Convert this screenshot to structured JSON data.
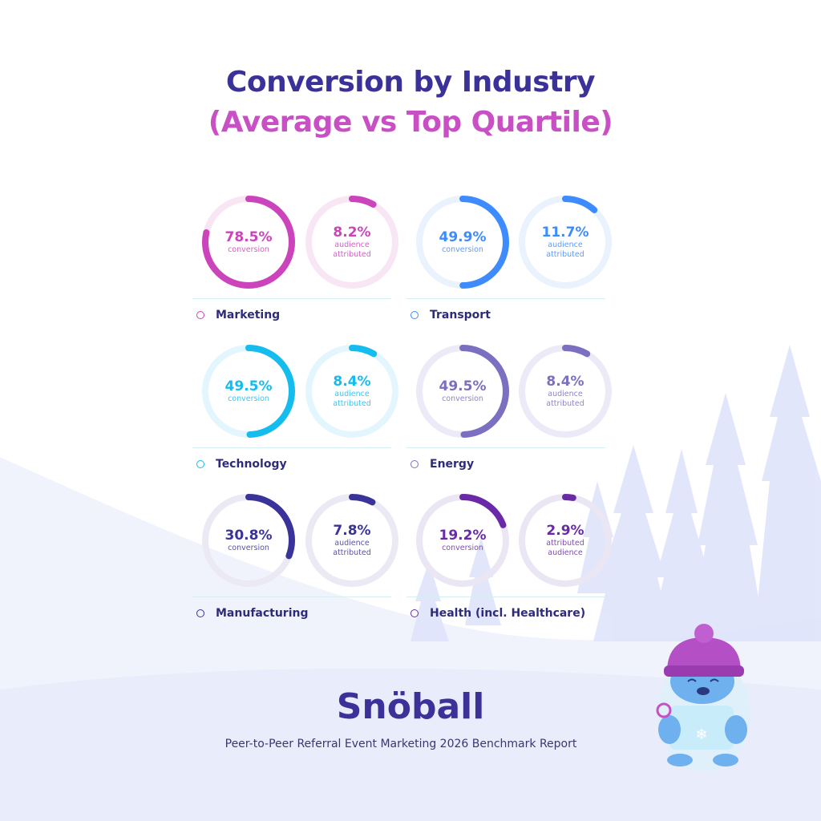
{
  "title": "Conversion by Industry",
  "subtitle": "(Average vs Top Quartile)",
  "brand": "Snöball",
  "report": "Peer-to-Peer Referral Event Marketing 2026 Benchmark Report",
  "chart_data": {
    "type": "pie",
    "variant": "donut-progress",
    "industries": [
      {
        "name": "Marketing",
        "color": "#cc44bb",
        "track": "#f8e6f4",
        "conversion": {
          "value": 78.5,
          "label": "78.5%",
          "caption": [
            "conversion"
          ]
        },
        "audience": {
          "value": 8.2,
          "label": "8.2%",
          "caption": [
            "audience",
            "attributed"
          ]
        }
      },
      {
        "name": "Transport",
        "color": "#3d8bfd",
        "track": "#eaf2fe",
        "conversion": {
          "value": 49.9,
          "label": "49.9%",
          "caption": [
            "conversion"
          ]
        },
        "audience": {
          "value": 11.7,
          "label": "11.7%",
          "caption": [
            "audience",
            "attributed"
          ]
        }
      },
      {
        "name": "Technology",
        "color": "#14bdee",
        "track": "#e3f6fd",
        "conversion": {
          "value": 49.5,
          "label": "49.5%",
          "caption": [
            "conversion"
          ]
        },
        "audience": {
          "value": 8.4,
          "label": "8.4%",
          "caption": [
            "audience",
            "attributed"
          ]
        }
      },
      {
        "name": "Energy",
        "color": "#7a6fc0",
        "track": "#eceaf6",
        "conversion": {
          "value": 49.5,
          "label": "49.5%",
          "caption": [
            "conversion"
          ]
        },
        "audience": {
          "value": 8.4,
          "label": "8.4%",
          "caption": [
            "audience",
            "attributed"
          ]
        }
      },
      {
        "name": "Manufacturing",
        "color": "#3a3399",
        "track": "#ebeaf4",
        "conversion": {
          "value": 30.8,
          "label": "30.8%",
          "caption": [
            "conversion"
          ]
        },
        "audience": {
          "value": 7.8,
          "label": "7.8%",
          "caption": [
            "audience",
            "attributed"
          ]
        }
      },
      {
        "name": "Health (incl. Healthcare)",
        "color": "#6a2aa8",
        "track": "#ebe6f3",
        "conversion": {
          "value": 19.2,
          "label": "19.2%",
          "caption": [
            "conversion"
          ]
        },
        "audience": {
          "value": 2.9,
          "label": "2.9%",
          "caption": [
            "attributed",
            "audience"
          ]
        }
      }
    ]
  }
}
